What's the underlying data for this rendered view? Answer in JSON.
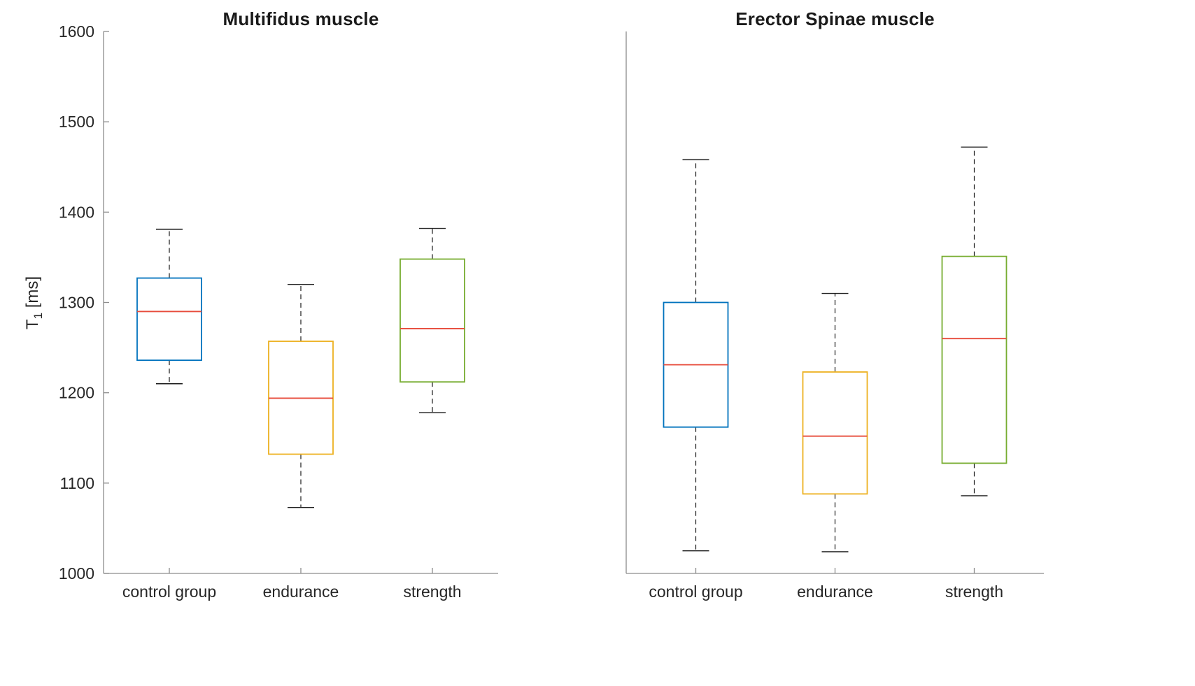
{
  "figure": {
    "background": "#ffffff",
    "text_color": "#262626",
    "axis_color": "#8c8c8c"
  },
  "ylabel": {
    "base": "T",
    "sub": "1",
    "rest": " [ms]"
  },
  "chart_data": [
    {
      "type": "box",
      "title": "Multifidus muscle",
      "xlabel": "",
      "ylabel": "T_1 [ms]",
      "ylim": [
        1000,
        1600
      ],
      "yticks": [
        1000,
        1100,
        1200,
        1300,
        1400,
        1500,
        1600
      ],
      "grid": false,
      "legend": "none",
      "categories": [
        "control group",
        "endurance",
        "strength"
      ],
      "median_color": "#e74c3c",
      "whisker_color": "#1a1a1a",
      "text_color": "#262626",
      "axis_color": "#8c8c8c",
      "boxes": [
        {
          "category": "control group",
          "color": "#0072BD",
          "whisker_low": 1210,
          "q1": 1236,
          "median": 1290,
          "q3": 1327,
          "whisker_high": 1381
        },
        {
          "category": "endurance",
          "color": "#EDB120",
          "whisker_low": 1073,
          "q1": 1132,
          "median": 1194,
          "q3": 1257,
          "whisker_high": 1320
        },
        {
          "category": "strength",
          "color": "#77AC30",
          "whisker_low": 1178,
          "q1": 1212,
          "median": 1271,
          "q3": 1348,
          "whisker_high": 1382
        }
      ]
    },
    {
      "type": "box",
      "title": "Erector Spinae muscle",
      "xlabel": "",
      "ylabel": "",
      "ylim": [
        1000,
        1600
      ],
      "yticks": [],
      "grid": false,
      "legend": "none",
      "categories": [
        "control group",
        "endurance",
        "strength"
      ],
      "median_color": "#e74c3c",
      "whisker_color": "#1a1a1a",
      "text_color": "#262626",
      "axis_color": "#8c8c8c",
      "boxes": [
        {
          "category": "control group",
          "color": "#0072BD",
          "whisker_low": 1025,
          "q1": 1162,
          "median": 1231,
          "q3": 1300,
          "whisker_high": 1458
        },
        {
          "category": "endurance",
          "color": "#EDB120",
          "whisker_low": 1024,
          "q1": 1088,
          "median": 1152,
          "q3": 1223,
          "whisker_high": 1310
        },
        {
          "category": "strength",
          "color": "#77AC30",
          "whisker_low": 1086,
          "q1": 1122,
          "median": 1260,
          "q3": 1351,
          "whisker_high": 1472
        }
      ]
    }
  ]
}
